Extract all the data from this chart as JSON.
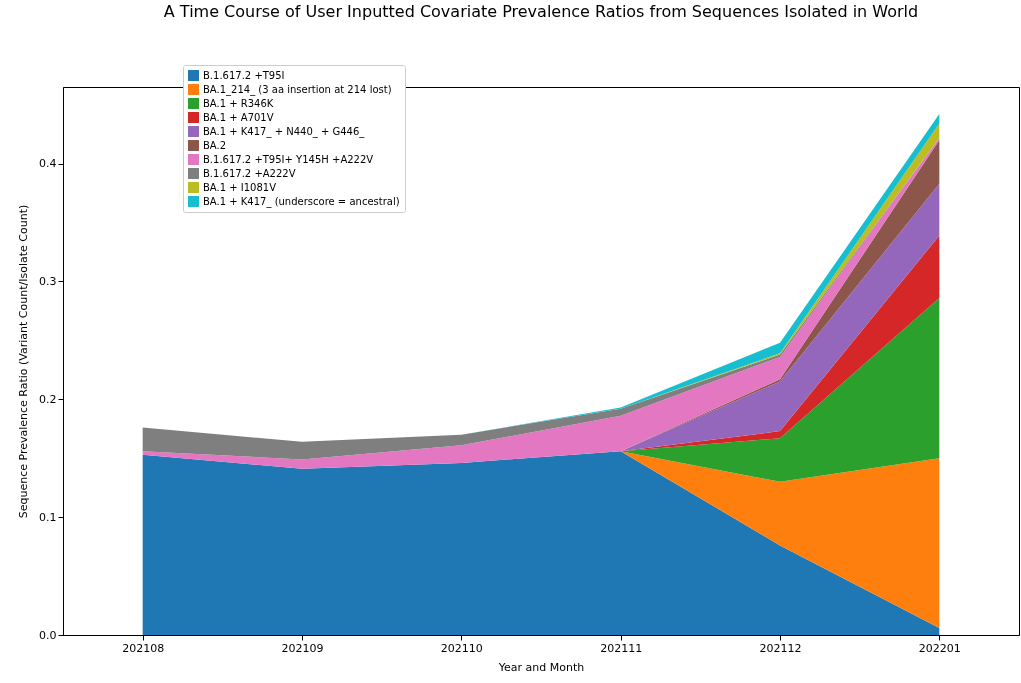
{
  "chart_data": {
    "type": "area",
    "stacked": true,
    "title": "A Time Course of User Inputted Covariate Prevalence Ratios from Sequences Isolated in World",
    "xlabel": "Year and Month",
    "ylabel": "Sequence Prevalence Ratio (Variant Count/Isolate Count)",
    "categories": [
      "202108",
      "202109",
      "202110",
      "202111",
      "202112",
      "202201"
    ],
    "series": [
      {
        "name": "B.1.617.2 +T95I",
        "color": "#1f77b4",
        "values": [
          0.153,
          0.141,
          0.146,
          0.156,
          0.076,
          0.006
        ]
      },
      {
        "name": "BA.1_214_ (3 aa insertion at 214 lost)",
        "color": "#ff7f0e",
        "values": [
          0,
          0,
          0,
          0,
          0.054,
          0.144
        ]
      },
      {
        "name": "BA.1 + R346K",
        "color": "#2ca02c",
        "values": [
          0,
          0,
          0,
          0,
          0.037,
          0.136
        ]
      },
      {
        "name": "BA.1 + A701V",
        "color": "#d62728",
        "values": [
          0,
          0,
          0,
          0,
          0.006,
          0.053
        ]
      },
      {
        "name": "BA.1 + K417_ + N440_ + G446_",
        "color": "#9467bd",
        "values": [
          0,
          0,
          0,
          0,
          0.042,
          0.044
        ]
      },
      {
        "name": "BA.2",
        "color": "#8c564b",
        "values": [
          0,
          0,
          0,
          0,
          0.002,
          0.037
        ]
      },
      {
        "name": "B.1.617.2 +T95I+ Y145H +A222V",
        "color": "#e377c2",
        "values": [
          0.003,
          0.008,
          0.015,
          0.03,
          0.019,
          0.002
        ]
      },
      {
        "name": "B.1.617.2 +A222V",
        "color": "#7f7f7f",
        "values": [
          0.02,
          0.015,
          0.009,
          0.006,
          0.002,
          0
        ]
      },
      {
        "name": "BA.1 + I1081V",
        "color": "#bcbd22",
        "values": [
          0,
          0,
          0,
          0,
          0.001,
          0.012
        ]
      },
      {
        "name": "BA.1 + K417_ (underscore = ancestral)",
        "color": "#17becf",
        "values": [
          0,
          0,
          0,
          0.001,
          0.009,
          0.008
        ]
      }
    ],
    "ylim": [
      0,
      0.465
    ],
    "yticks": [
      {
        "value": 0,
        "label": "0.0"
      },
      {
        "value": 0.1,
        "label": "0.1"
      },
      {
        "value": 0.2,
        "label": "0.2"
      },
      {
        "value": 0.3,
        "label": "0.3"
      },
      {
        "value": 0.4,
        "label": "0.4"
      }
    ],
    "grid": false,
    "legend": "top left"
  }
}
